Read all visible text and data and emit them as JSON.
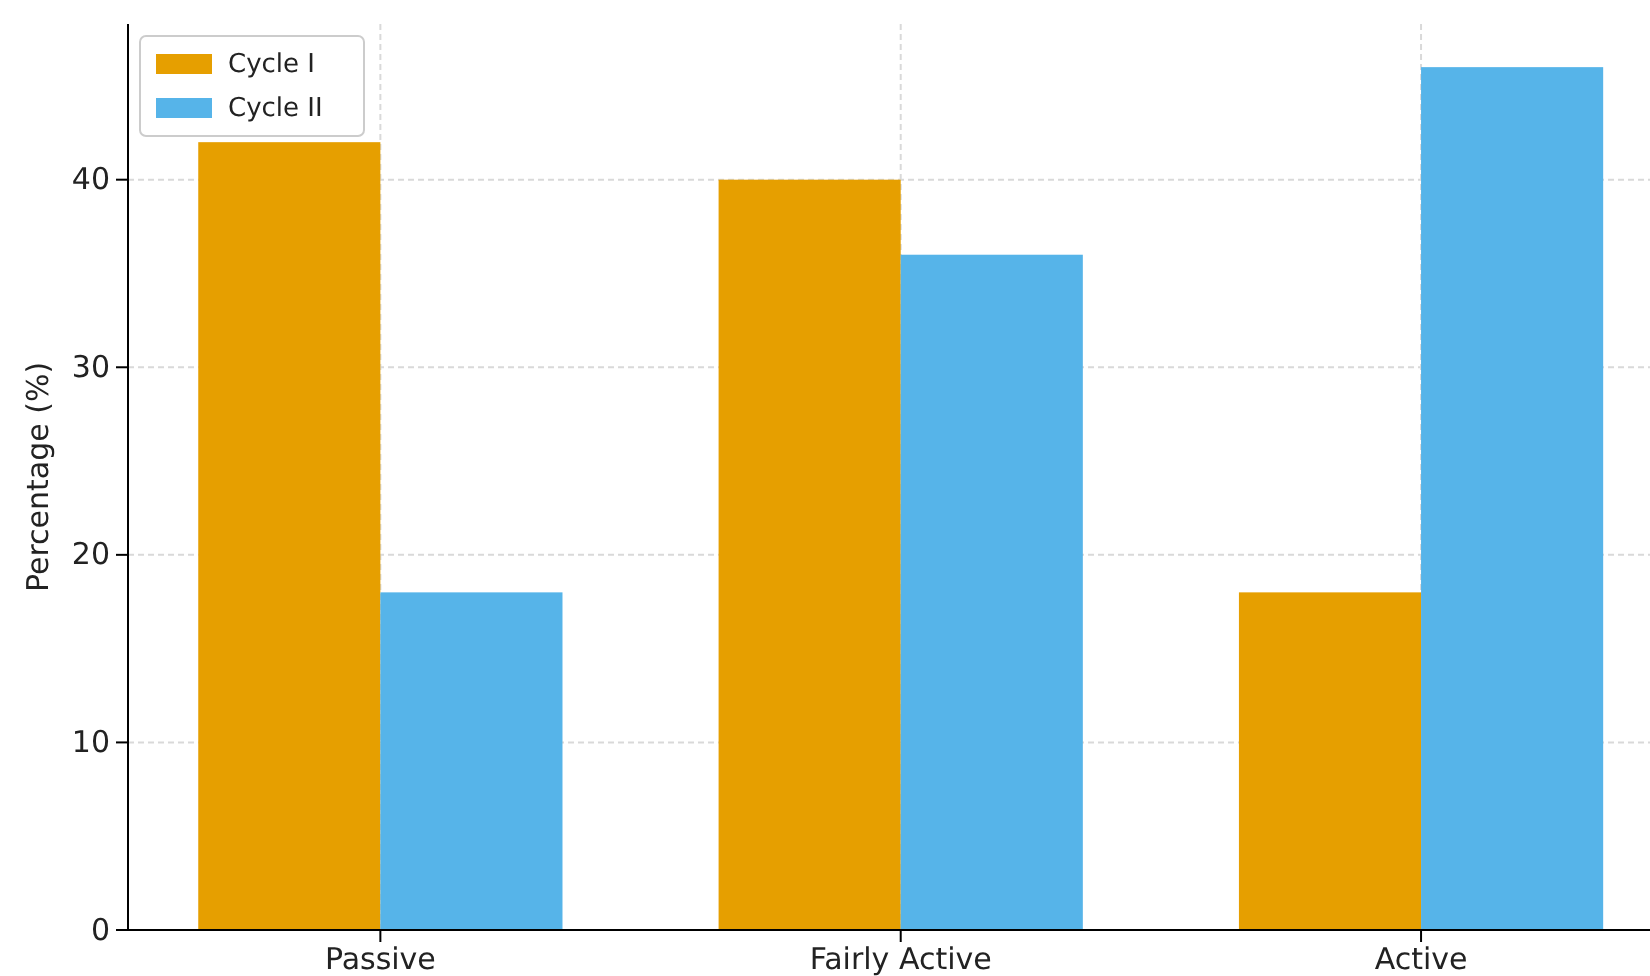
{
  "chart_data": {
    "type": "bar",
    "ylabel": "Percentage (%)",
    "categories": [
      "Passive",
      "Fairly Active",
      "Active"
    ],
    "series": [
      {
        "name": "Cycle I",
        "color": "#e69f00",
        "values": [
          42,
          40,
          18
        ]
      },
      {
        "name": "Cycle II",
        "color": "#56b4e9",
        "values": [
          18,
          36,
          46
        ]
      }
    ],
    "ylim": [
      0,
      48.3
    ],
    "yticks": [
      0,
      10,
      20,
      30,
      40
    ],
    "grid": true,
    "legend": "top left"
  }
}
